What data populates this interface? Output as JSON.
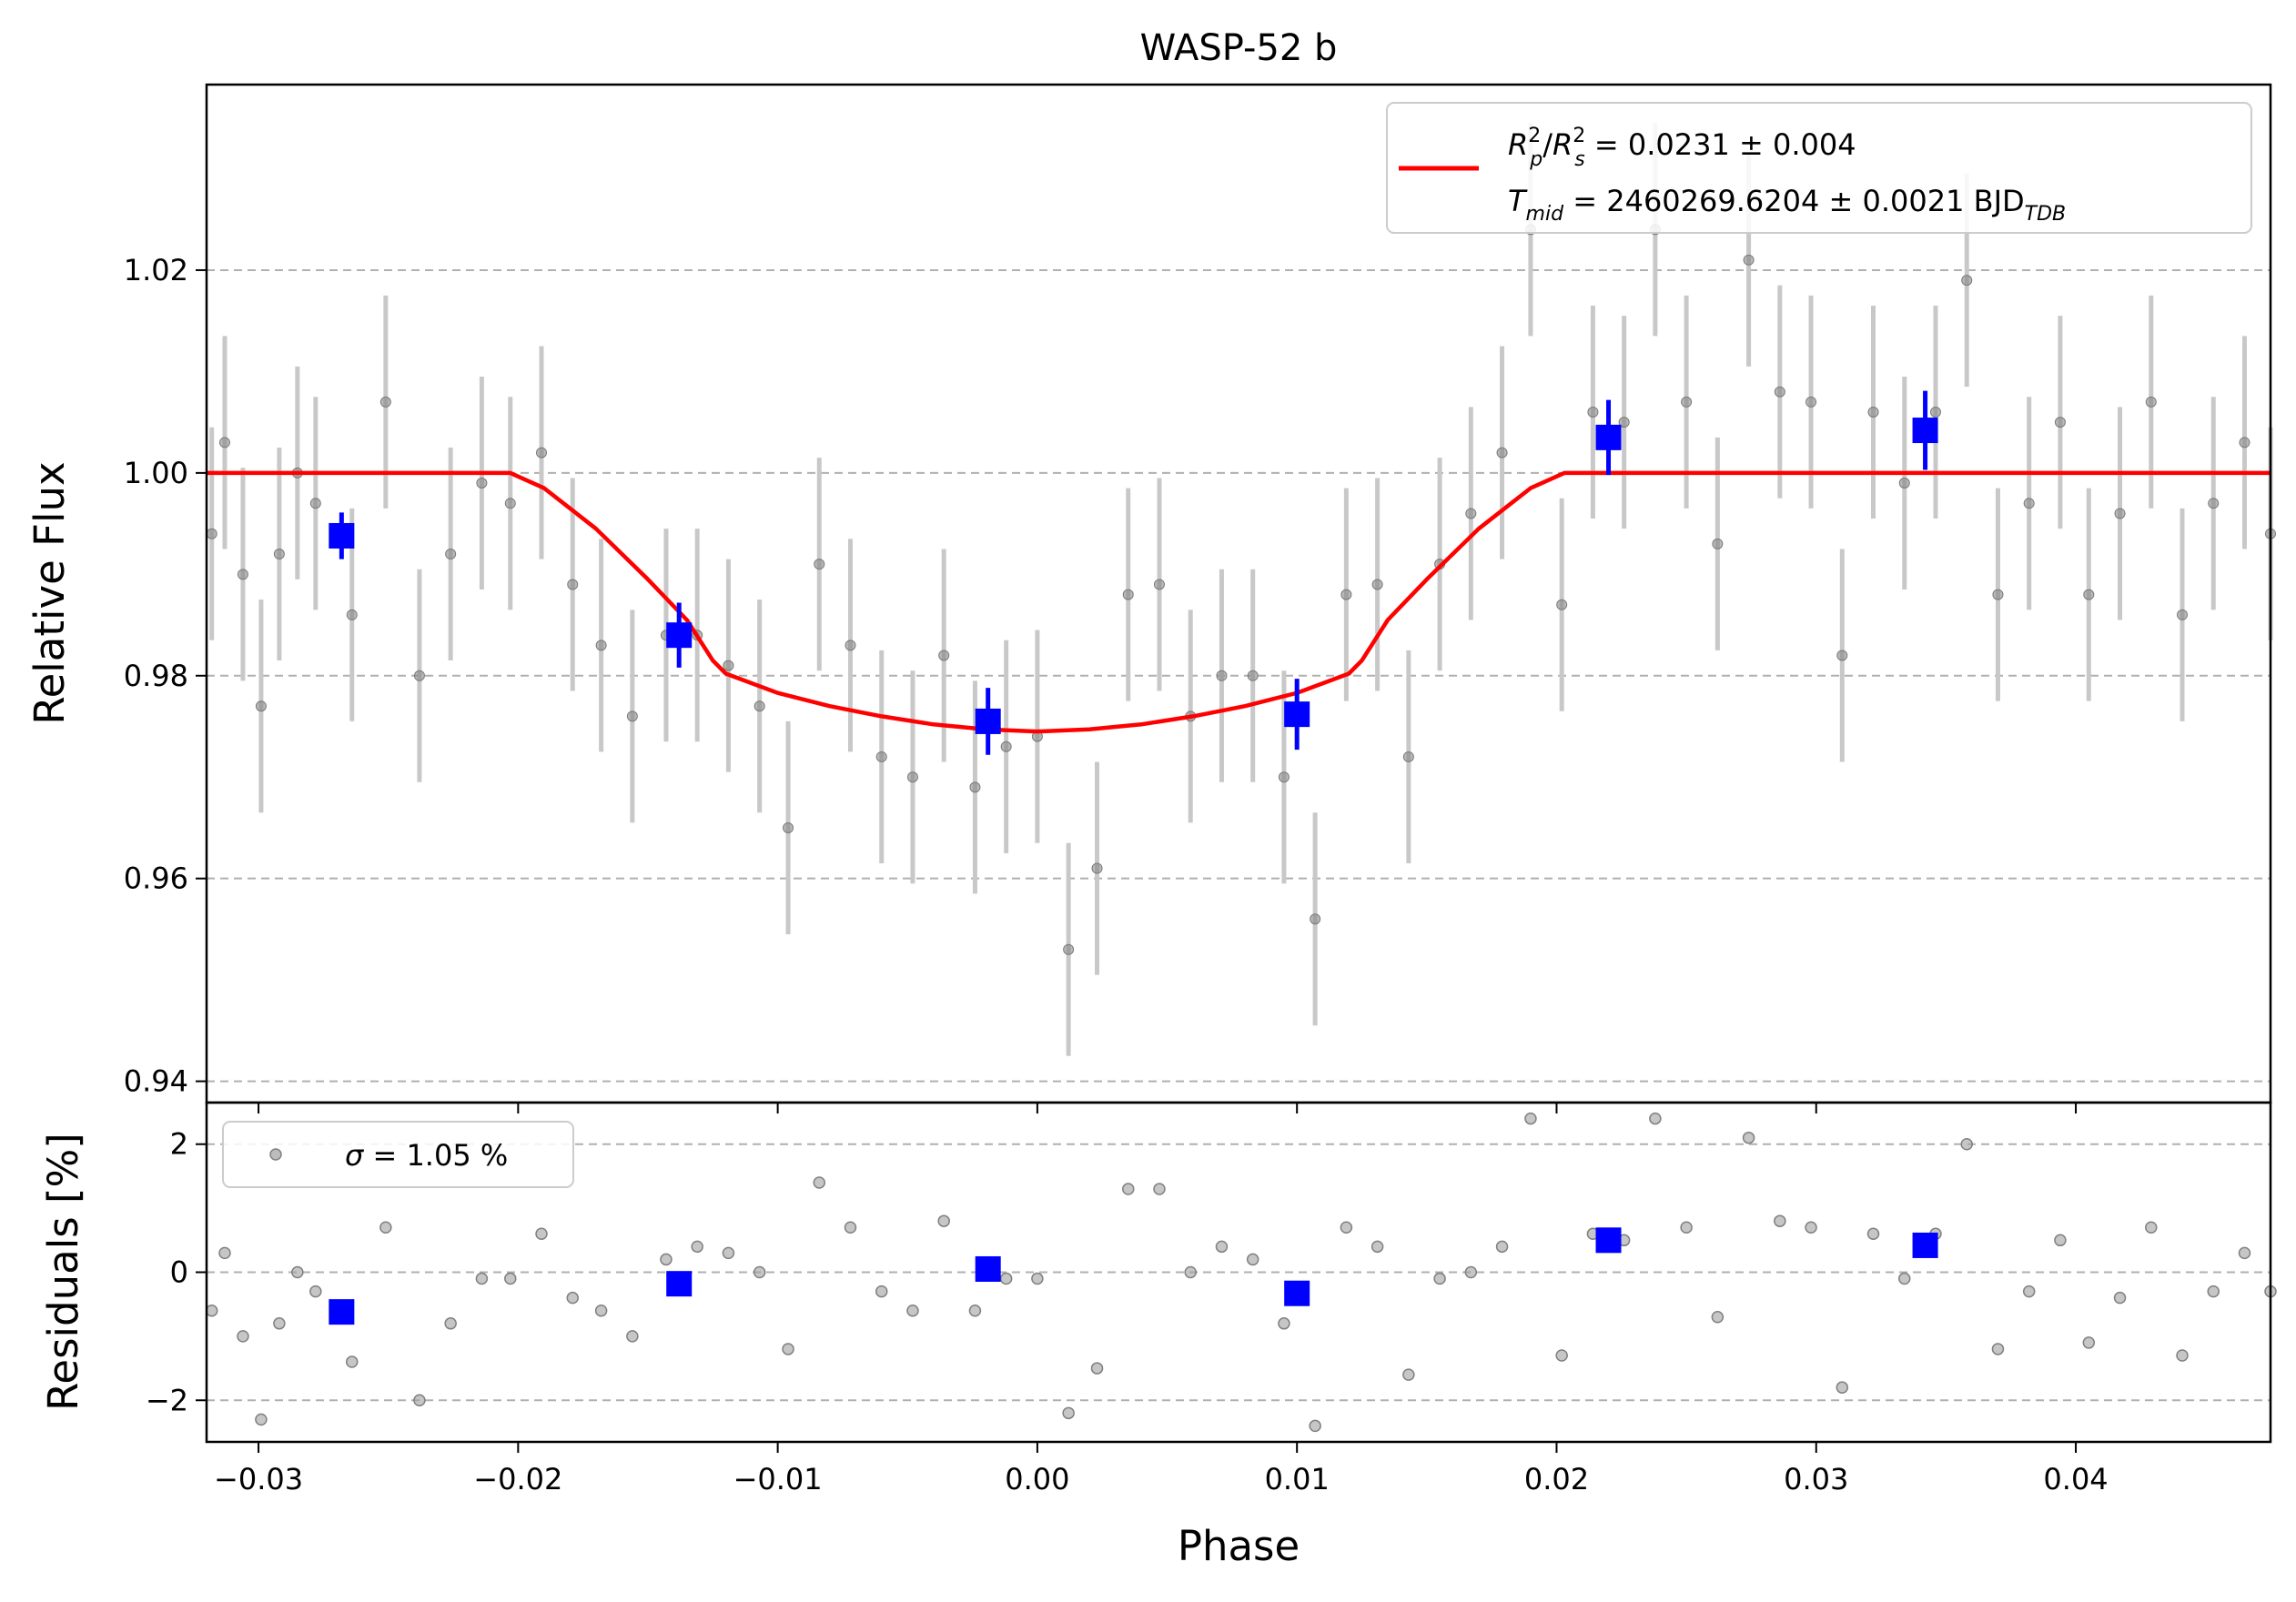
{
  "chart_data": [
    {
      "type": "scatter",
      "panel": "main",
      "title": "WASP-52 b",
      "xlabel": "",
      "ylabel": "Relative Flux",
      "xlim": [
        -0.032,
        0.0475
      ],
      "ylim": [
        0.9379,
        1.0383
      ],
      "yticks": [
        0.94,
        0.96,
        0.98,
        1.0,
        1.02
      ],
      "ytick_labels": [
        "0.94",
        "0.96",
        "0.98",
        "1.00",
        "1.02"
      ],
      "grid": "horizontal dashed",
      "legend": {
        "placement": "top-right",
        "line1": "Rₚ²/Rₛ² = 0.0231 ± 0.004",
        "line1_parts": {
          "a": "R",
          "a_sup": "2",
          "a_sub": "p",
          "b": "R",
          "b_sup": "2",
          "b_sub": "s",
          "rest": " = 0.0231 ± 0.004"
        },
        "line2": "T_mid = 2460269.6204 ± 0.0021 BJD_TDB",
        "line2_parts": {
          "sym": "T",
          "sym_sub": "mid",
          "rest": " = 2460269.6204 ± 0.0021 BJD",
          "unit_sub": "TDB"
        },
        "color": "#ff0000"
      },
      "model": {
        "name": "transit model",
        "color": "#ff0000",
        "x": [
          -0.032,
          -0.0203,
          -0.019,
          -0.017,
          -0.015,
          -0.0135,
          -0.0125,
          -0.012,
          -0.01,
          -0.008,
          -0.006,
          -0.004,
          -0.002,
          0.0,
          0.002,
          0.004,
          0.006,
          0.008,
          0.01,
          0.012,
          0.0125,
          0.0135,
          0.015,
          0.017,
          0.019,
          0.0203,
          0.0475
        ],
        "y": [
          1.0,
          1.0,
          0.9985,
          0.9945,
          0.9895,
          0.9855,
          0.9815,
          0.9802,
          0.9783,
          0.977,
          0.976,
          0.9752,
          0.9747,
          0.9745,
          0.9747,
          0.9752,
          0.976,
          0.977,
          0.9783,
          0.9802,
          0.9815,
          0.9855,
          0.9895,
          0.9945,
          0.9985,
          1.0,
          1.0
        ]
      },
      "data_points": {
        "color": "#808080",
        "errorbar_color": "#c8c8c8",
        "x": [
          -0.0318,
          -0.0313,
          -0.0306,
          -0.0299,
          -0.0292,
          -0.0285,
          -0.0278,
          -0.0264,
          -0.0251,
          -0.0238,
          -0.0226,
          -0.0214,
          -0.0203,
          -0.0191,
          -0.0179,
          -0.0168,
          -0.0156,
          -0.0143,
          -0.0131,
          -0.0119,
          -0.0107,
          -0.0096,
          -0.0084,
          -0.0072,
          -0.006,
          -0.0048,
          -0.0036,
          -0.0024,
          -0.0012,
          0.0,
          0.0012,
          0.0023,
          0.0035,
          0.0047,
          0.0059,
          0.0071,
          0.0083,
          0.0095,
          0.0107,
          0.0119,
          0.0131,
          0.0143,
          0.0155,
          0.0167,
          0.0179,
          0.019,
          0.0202,
          0.0214,
          0.0226,
          0.0238,
          0.025,
          0.0262,
          0.0274,
          0.0286,
          0.0298,
          0.031,
          0.0322,
          0.0334,
          0.0346,
          0.0358,
          0.037,
          0.0382,
          0.0394,
          0.0405,
          0.0417,
          0.0429,
          0.0441,
          0.0453,
          0.0465,
          0.0475
        ],
        "y": [
          0.994,
          1.003,
          0.99,
          0.977,
          0.992,
          1.0,
          0.997,
          0.986,
          1.007,
          0.98,
          0.992,
          0.999,
          0.997,
          1.002,
          0.989,
          0.983,
          0.976,
          0.984,
          0.984,
          0.981,
          0.977,
          0.965,
          0.991,
          0.983,
          0.972,
          0.97,
          0.982,
          0.969,
          0.973,
          0.974,
          0.953,
          0.961,
          0.988,
          0.989,
          0.976,
          0.98,
          0.98,
          0.97,
          0.956,
          0.988,
          0.989,
          0.972,
          0.991,
          0.996,
          1.002,
          1.024,
          0.987,
          1.006,
          1.005,
          1.024,
          1.007,
          0.993,
          1.021,
          1.008,
          1.007,
          0.982,
          1.006,
          0.999,
          1.006,
          1.019,
          0.988,
          0.997,
          1.005,
          0.988,
          0.996,
          1.007,
          0.986,
          0.997,
          1.003,
          0.994
        ],
        "yerr": 0.0105
      },
      "binned_points": {
        "color": "#0000ff",
        "x": [
          -0.0268,
          -0.0138,
          -0.0019,
          0.01,
          0.022,
          0.0342
        ],
        "y": [
          0.9938,
          0.984,
          0.9755,
          0.9762,
          1.0035,
          1.0042
        ],
        "yerr": [
          0.0023,
          0.0032,
          0.0033,
          0.0035,
          0.0037,
          0.0039
        ]
      }
    },
    {
      "type": "scatter",
      "panel": "residuals",
      "xlabel": "Phase",
      "ylabel": "Residuals [%]",
      "xlim": [
        -0.032,
        0.0475
      ],
      "ylim": [
        -2.65,
        2.65
      ],
      "xticks": [
        -0.03,
        -0.02,
        -0.01,
        0.0,
        0.01,
        0.02,
        0.03,
        0.04
      ],
      "xtick_labels": [
        "−0.03",
        "−0.02",
        "−0.01",
        "0.00",
        "0.01",
        "0.02",
        "0.03",
        "0.04"
      ],
      "yticks": [
        -2,
        0,
        2
      ],
      "ytick_labels": [
        "−2",
        "0",
        "2"
      ],
      "grid": "horizontal dashed",
      "legend": {
        "placement": "top-left",
        "sym": "σ",
        "rest": " = 1.05 %"
      },
      "residual_points": {
        "color": "#a0a0a0",
        "x": [
          -0.0318,
          -0.0313,
          -0.0306,
          -0.0299,
          -0.0292,
          -0.0285,
          -0.0278,
          -0.0264,
          -0.0251,
          -0.0238,
          -0.0226,
          -0.0214,
          -0.0203,
          -0.0191,
          -0.0179,
          -0.0168,
          -0.0156,
          -0.0143,
          -0.0131,
          -0.0119,
          -0.0107,
          -0.0096,
          -0.0084,
          -0.0072,
          -0.006,
          -0.0048,
          -0.0036,
          -0.0024,
          -0.0012,
          0.0,
          0.0012,
          0.0023,
          0.0035,
          0.0047,
          0.0059,
          0.0071,
          0.0083,
          0.0095,
          0.0107,
          0.0119,
          0.0131,
          0.0143,
          0.0155,
          0.0167,
          0.0179,
          0.019,
          0.0202,
          0.0214,
          0.0226,
          0.0238,
          0.025,
          0.0262,
          0.0274,
          0.0286,
          0.0298,
          0.031,
          0.0322,
          0.0334,
          0.0346,
          0.0358,
          0.037,
          0.0382,
          0.0394,
          0.0405,
          0.0417,
          0.0429,
          0.0441,
          0.0453,
          0.0465,
          0.0475
        ],
        "y": [
          -0.6,
          0.3,
          -1.0,
          -2.3,
          -0.8,
          0.0,
          -0.3,
          -1.4,
          0.7,
          -2.0,
          -0.8,
          -0.1,
          -0.1,
          0.6,
          -0.4,
          -0.6,
          -1.0,
          0.2,
          0.4,
          0.3,
          0.0,
          -1.2,
          1.4,
          0.7,
          -0.3,
          -0.6,
          0.8,
          -0.6,
          -0.1,
          -0.1,
          -2.2,
          -1.5,
          1.3,
          1.3,
          0.0,
          0.4,
          0.2,
          -0.8,
          -2.4,
          0.7,
          0.4,
          -1.6,
          -0.1,
          0.0,
          0.4,
          2.4,
          -1.3,
          0.6,
          0.5,
          2.4,
          0.7,
          -0.7,
          2.1,
          0.8,
          0.7,
          -1.8,
          0.6,
          -0.1,
          0.6,
          2.0,
          -1.2,
          -0.3,
          0.5,
          -1.1,
          -0.4,
          0.7,
          -1.3,
          -0.3,
          0.3,
          -0.3
        ]
      },
      "binned_residuals": {
        "color": "#0000ff",
        "x": [
          -0.0268,
          -0.0138,
          -0.0019,
          0.01,
          0.022,
          0.0342
        ],
        "y": [
          -0.62,
          -0.18,
          0.05,
          -0.33,
          0.5,
          0.42
        ]
      }
    }
  ]
}
